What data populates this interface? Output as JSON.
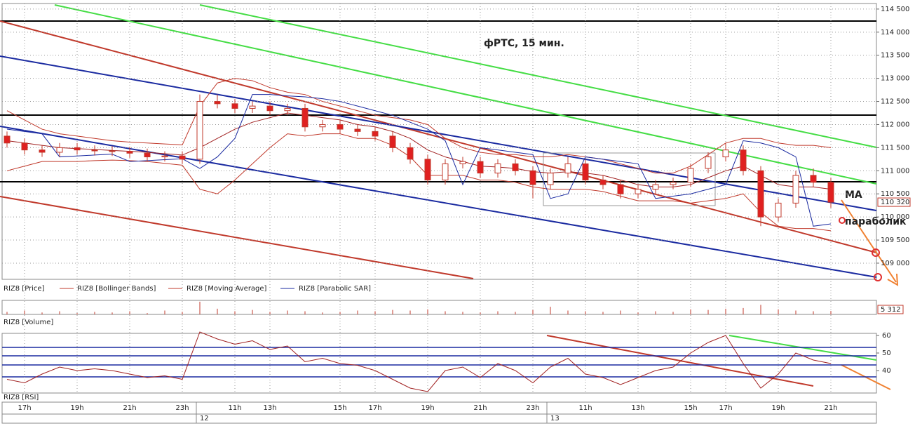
{
  "chart_data": {
    "type": "candlestick",
    "title": "фРТС, 15 мин.",
    "annotations": [
      "MA",
      "параболик"
    ],
    "legend": [
      "RIZ8 [Price]",
      "RIZ8 [Bollinger Bands]",
      "RIZ8 [Moving Average]",
      "RIZ8 [Parabolic SAR]"
    ],
    "categories": [
      null,
      "17h",
      null,
      null,
      "19h",
      null,
      null,
      "21h",
      null,
      null,
      "23h",
      null,
      null,
      "11h",
      null,
      "13h",
      null,
      null,
      null,
      "15h",
      null,
      "17h",
      null,
      null,
      "19h",
      null,
      null,
      "21h",
      null,
      null,
      "23h",
      null,
      null,
      "11h",
      null,
      null,
      "13h",
      null,
      null,
      "15h",
      null,
      "17h",
      null,
      null,
      "19h",
      null,
      null,
      "21h"
    ],
    "dates": [
      null,
      null,
      null,
      null,
      null,
      null,
      null,
      null,
      null,
      null,
      null,
      "12",
      null,
      null,
      null,
      null,
      null,
      null,
      null,
      null,
      null,
      null,
      null,
      null,
      null,
      null,
      null,
      null,
      null,
      null,
      null,
      "13",
      null,
      null,
      null,
      null,
      null,
      null,
      null,
      null,
      null,
      null,
      null,
      null,
      null,
      null,
      null,
      null
    ],
    "candles": [
      [
        111750,
        111850,
        111500,
        111600
      ],
      [
        111600,
        111700,
        111350,
        111450
      ],
      [
        111450,
        111550,
        111300,
        111400
      ],
      [
        111400,
        111600,
        111300,
        111500
      ],
      [
        111500,
        111600,
        111350,
        111450
      ],
      [
        111450,
        111550,
        111330,
        111430
      ],
      [
        111430,
        111530,
        111320,
        111420
      ],
      [
        111420,
        111520,
        111280,
        111380
      ],
      [
        111380,
        111480,
        111200,
        111300
      ],
      [
        111300,
        111420,
        111200,
        111320
      ],
      [
        111320,
        111420,
        111150,
        111250
      ],
      [
        111250,
        112650,
        111150,
        112500
      ],
      [
        112500,
        112650,
        112350,
        112450
      ],
      [
        112450,
        112550,
        112250,
        112350
      ],
      [
        112350,
        112500,
        112250,
        112400
      ],
      [
        112400,
        112500,
        112200,
        112300
      ],
      [
        112300,
        112450,
        112200,
        112350
      ],
      [
        112350,
        112450,
        111850,
        111950
      ],
      [
        111950,
        112100,
        111850,
        112000
      ],
      [
        112000,
        112100,
        111800,
        111900
      ],
      [
        111900,
        112000,
        111750,
        111850
      ],
      [
        111850,
        111950,
        111650,
        111750
      ],
      [
        111750,
        111850,
        111400,
        111500
      ],
      [
        111500,
        111600,
        111150,
        111250
      ],
      [
        111250,
        111350,
        110700,
        110800
      ],
      [
        110800,
        111250,
        110700,
        111150
      ],
      [
        111150,
        111300,
        111050,
        111200
      ],
      [
        111200,
        111300,
        110850,
        110950
      ],
      [
        110950,
        111250,
        110850,
        111150
      ],
      [
        111150,
        111250,
        110900,
        111000
      ],
      [
        111000,
        111100,
        110400,
        110700
      ],
      [
        110700,
        111050,
        110600,
        110950
      ],
      [
        110950,
        111300,
        110850,
        111150
      ],
      [
        111150,
        111250,
        110700,
        110800
      ],
      [
        110800,
        110900,
        110600,
        110700
      ],
      [
        110700,
        110800,
        110400,
        110500
      ],
      [
        110500,
        110700,
        110400,
        110600
      ],
      [
        110600,
        110800,
        110500,
        110700
      ],
      [
        110700,
        110850,
        110600,
        110750
      ],
      [
        110750,
        111150,
        110650,
        111050
      ],
      [
        111050,
        111400,
        110950,
        111300
      ],
      [
        111300,
        111600,
        111200,
        111450
      ],
      [
        111450,
        111550,
        110900,
        111000
      ],
      [
        111000,
        111100,
        109800,
        110000
      ],
      [
        110000,
        110400,
        109900,
        110300
      ],
      [
        110300,
        111000,
        110200,
        110900
      ],
      [
        110900,
        111050,
        110650,
        110750
      ],
      [
        110750,
        110850,
        110200,
        110320
      ]
    ],
    "moving_average": [
      111650,
      111600,
      111550,
      111500,
      111480,
      111460,
      111440,
      111420,
      111400,
      111370,
      111340,
      111500,
      111700,
      111900,
      112050,
      112150,
      112250,
      112200,
      112150,
      112100,
      112000,
      111950,
      111850,
      111700,
      111450,
      111300,
      111200,
      111100,
      111080,
      111050,
      110980,
      110950,
      110980,
      110950,
      110900,
      110800,
      110700,
      110650,
      110650,
      110700,
      110850,
      111000,
      111100,
      110900,
      110700,
      110650,
      110650,
      110600
    ],
    "bollinger_upper": [
      112300,
      112100,
      111900,
      111800,
      111750,
      111700,
      111650,
      111620,
      111600,
      111580,
      111560,
      112400,
      112900,
      113000,
      112950,
      112800,
      112700,
      112650,
      112500,
      112400,
      112300,
      112200,
      112150,
      112100,
      112000,
      111700,
      111500,
      111400,
      111350,
      111350,
      111300,
      111300,
      111350,
      111300,
      111250,
      111150,
      111050,
      110950,
      110950,
      111100,
      111350,
      111600,
      111700,
      111700,
      111600,
      111550,
      111550,
      111500
    ],
    "bollinger_lower": [
      111000,
      111100,
      111200,
      111200,
      111200,
      111220,
      111230,
      111220,
      111200,
      111160,
      111120,
      110600,
      110500,
      110800,
      111150,
      111500,
      111800,
      111750,
      111800,
      111800,
      111700,
      111700,
      111550,
      111300,
      110900,
      110900,
      110900,
      110800,
      110800,
      110750,
      110650,
      110600,
      110600,
      110600,
      110550,
      110450,
      110350,
      110350,
      110350,
      110300,
      110350,
      110400,
      110500,
      110100,
      109800,
      109750,
      109750,
      109700
    ],
    "parabolic_sar": [
      111900,
      111850,
      111800,
      111300,
      111320,
      111340,
      111360,
      111200,
      111220,
      111240,
      111260,
      111050,
      111300,
      111700,
      112650,
      112650,
      112620,
      112600,
      112560,
      112500,
      112400,
      112300,
      112200,
      112050,
      111900,
      111650,
      110700,
      111500,
      111450,
      111400,
      111350,
      110400,
      110500,
      111300,
      111250,
      111200,
      111150,
      110400,
      110450,
      110500,
      110600,
      110700,
      111650,
      111600,
      111500,
      111300,
      109800,
      109850
    ],
    "ylim": [
      108650,
      114620
    ],
    "yticks": [
      {
        "value": 109000,
        "label": "109 000"
      },
      {
        "value": 109500,
        "label": "109 500"
      },
      {
        "value": 110000,
        "label": "110 000"
      },
      {
        "value": 110500,
        "label": "110 500"
      },
      {
        "value": 111000,
        "label": "111 000"
      },
      {
        "value": 111500,
        "label": "111 500"
      },
      {
        "value": 112000,
        "label": "112 000"
      },
      {
        "value": 112500,
        "label": "112 500"
      },
      {
        "value": 113000,
        "label": "113 000"
      },
      {
        "value": 113500,
        "label": "113 500"
      },
      {
        "value": 114000,
        "label": "114 000"
      },
      {
        "value": 114500,
        "label": "114 500"
      }
    ],
    "last_price": {
      "value": 110320,
      "label": "110 320"
    },
    "volume": {
      "title": "RIZ8 [Volume]",
      "values": [
        4000,
        6000,
        3000,
        5000,
        2000,
        4000,
        3000,
        5000,
        2000,
        6000,
        4000,
        20000,
        9000,
        5000,
        7000,
        4000,
        6000,
        5000,
        3000,
        4000,
        6000,
        5000,
        7000,
        6000,
        8000,
        5000,
        4000,
        3000,
        5000,
        4000,
        7000,
        12000,
        6000,
        5000,
        4000,
        6000,
        3000,
        5000,
        4000,
        8000,
        7000,
        9000,
        10000,
        15000,
        8000,
        6000,
        5000,
        5312
      ],
      "ylim": [
        0,
        22000
      ],
      "last": {
        "value": 5312,
        "label": "5 312"
      }
    },
    "rsi": {
      "title": "RIZ8 [RSI]",
      "values": [
        35,
        33,
        38,
        42,
        40,
        41,
        40,
        38,
        36,
        37,
        35,
        62,
        58,
        55,
        57,
        52,
        54,
        45,
        47,
        44,
        43,
        40,
        35,
        30,
        28,
        40,
        42,
        36,
        44,
        40,
        33,
        42,
        47,
        38,
        36,
        32,
        36,
        40,
        42,
        50,
        56,
        60,
        44,
        30,
        38,
        50,
        46,
        44
      ],
      "ylim": [
        27.2,
        61.2
      ],
      "yticks": [
        40,
        50,
        60
      ]
    }
  }
}
